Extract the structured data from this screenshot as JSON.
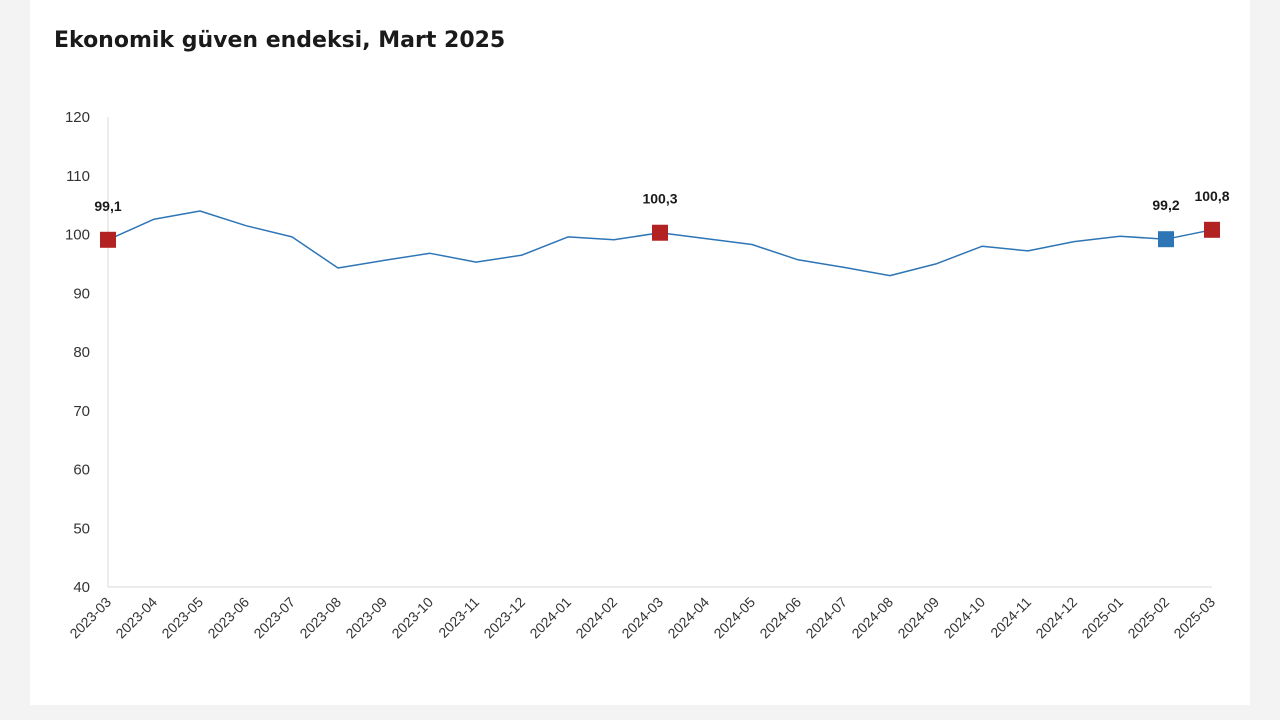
{
  "chart_data": {
    "type": "line",
    "title": "Ekonomik güven endeksi, Mart 2025",
    "xlabel": "",
    "ylabel": "",
    "ylim": [
      40,
      120
    ],
    "yticks": [
      40,
      50,
      60,
      70,
      80,
      90,
      100,
      110,
      120
    ],
    "grid": false,
    "categories": [
      "2023-03",
      "2023-04",
      "2023-05",
      "2023-06",
      "2023-07",
      "2023-08",
      "2023-09",
      "2023-10",
      "2023-11",
      "2023-12",
      "2024-01",
      "2024-02",
      "2024-03",
      "2024-04",
      "2024-05",
      "2024-06",
      "2024-07",
      "2024-08",
      "2024-09",
      "2024-10",
      "2024-11",
      "2024-12",
      "2025-01",
      "2025-02",
      "2025-03"
    ],
    "series": [
      {
        "values": [
          99.1,
          102.6,
          104.0,
          101.5,
          99.6,
          94.3,
          95.6,
          96.8,
          95.3,
          96.5,
          99.6,
          99.1,
          100.3,
          99.3,
          98.3,
          95.7,
          94.4,
          93.0,
          95.0,
          98.0,
          97.2,
          98.8,
          99.7,
          99.2,
          100.8
        ],
        "color": "#2e75b6"
      }
    ],
    "highlighted_points": [
      {
        "category": "2023-03",
        "value": 99.1,
        "label": "99,1",
        "color": "#b22222"
      },
      {
        "category": "2024-03",
        "value": 100.3,
        "label": "100,3",
        "color": "#b22222"
      },
      {
        "category": "2025-02",
        "value": 99.2,
        "label": "99,2",
        "color": "#2e75b6"
      },
      {
        "category": "2025-03",
        "value": 100.8,
        "label": "100,8",
        "color": "#b22222"
      }
    ]
  }
}
